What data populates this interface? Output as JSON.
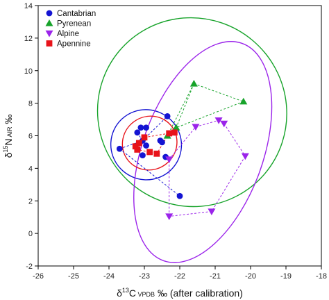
{
  "chart_data": {
    "type": "scatter",
    "title": "",
    "xlabel": {
      "pre": "δ",
      "sup": "13",
      "mid": "C",
      "sub": " VPDB",
      "post": " ‰ (after calibration)"
    },
    "ylabel": {
      "pre": "δ",
      "sup": "15",
      "mid": "N",
      "sub": " AIR",
      "post": " ‰"
    },
    "xlim": [
      -26,
      -18
    ],
    "ylim": [
      -2,
      14
    ],
    "xticks": [
      -26,
      -25,
      -24,
      -23,
      -22,
      -21,
      -20,
      -19,
      -18
    ],
    "yticks": [
      -2,
      0,
      2,
      4,
      6,
      8,
      10,
      12,
      14
    ],
    "grid": false,
    "legend_position": "top-left",
    "series": [
      {
        "name": "Cantabrian",
        "marker": "circle",
        "color": "#1414d2",
        "points": [
          [
            -23.7,
            5.2
          ],
          [
            -23.2,
            6.2
          ],
          [
            -23.1,
            6.5
          ],
          [
            -22.95,
            6.5
          ],
          [
            -23.05,
            5.7
          ],
          [
            -22.95,
            5.4
          ],
          [
            -23.05,
            4.8
          ],
          [
            -22.55,
            5.7
          ],
          [
            -22.5,
            5.6
          ],
          [
            -22.35,
            7.2
          ],
          [
            -22.4,
            4.7
          ],
          [
            -22.15,
            6.2
          ],
          [
            -22.0,
            2.3
          ]
        ],
        "connections": [
          [
            0,
            4
          ],
          [
            4,
            9
          ],
          [
            0,
            12
          ],
          [
            1,
            4
          ]
        ]
      },
      {
        "name": "Pyrenean",
        "marker": "triangle-up",
        "color": "#17a32a",
        "points": [
          [
            -21.6,
            9.2
          ],
          [
            -20.2,
            8.1
          ],
          [
            -22.1,
            6.5
          ],
          [
            -22.35,
            6.0
          ]
        ],
        "connections": [
          [
            0,
            1
          ],
          [
            1,
            2
          ],
          [
            0,
            2
          ],
          [
            0,
            3
          ]
        ]
      },
      {
        "name": "Alpine",
        "marker": "triangle-down",
        "color": "#9b24ea",
        "points": [
          [
            -20.9,
            6.95
          ],
          [
            -20.75,
            6.75
          ],
          [
            -21.55,
            6.55
          ],
          [
            -22.3,
            4.55
          ],
          [
            -20.15,
            4.75
          ],
          [
            -22.3,
            1.05
          ],
          [
            -21.1,
            1.35
          ]
        ],
        "connections": [
          [
            2,
            0
          ],
          [
            0,
            1
          ],
          [
            1,
            4
          ],
          [
            4,
            6
          ],
          [
            6,
            5
          ],
          [
            5,
            3
          ],
          [
            3,
            2
          ]
        ]
      },
      {
        "name": "Apennine",
        "marker": "square",
        "color": "#e8131a",
        "points": [
          [
            -23.25,
            5.35
          ],
          [
            -23.15,
            5.55
          ],
          [
            -23.2,
            5.15
          ],
          [
            -23.0,
            5.9
          ],
          [
            -22.85,
            5.0
          ],
          [
            -22.65,
            4.9
          ],
          [
            -22.3,
            6.15
          ],
          [
            -22.15,
            6.2
          ]
        ],
        "connections": [
          [
            0,
            3
          ],
          [
            3,
            6
          ],
          [
            6,
            5
          ],
          [
            5,
            2
          ]
        ]
      }
    ],
    "ellipses": [
      {
        "series": "Cantabrian",
        "color": "#1414d2",
        "cx": -22.95,
        "cy": 5.45,
        "rx": 1.0,
        "ry": 2.15,
        "rot": 25
      },
      {
        "series": "Pyrenean",
        "color": "#17a32a",
        "cx": -21.65,
        "cy": 7.45,
        "rx": 2.65,
        "ry": 5.85,
        "rot": -50
      },
      {
        "series": "Alpine",
        "color": "#9b24ea",
        "cx": -21.35,
        "cy": 5.0,
        "rx": 1.7,
        "ry": 7.1,
        "rot": 20
      },
      {
        "series": "Apennine",
        "color": "#e8131a",
        "cx": -22.85,
        "cy": 5.55,
        "rx": 0.75,
        "ry": 1.7,
        "rot": 55
      }
    ]
  }
}
